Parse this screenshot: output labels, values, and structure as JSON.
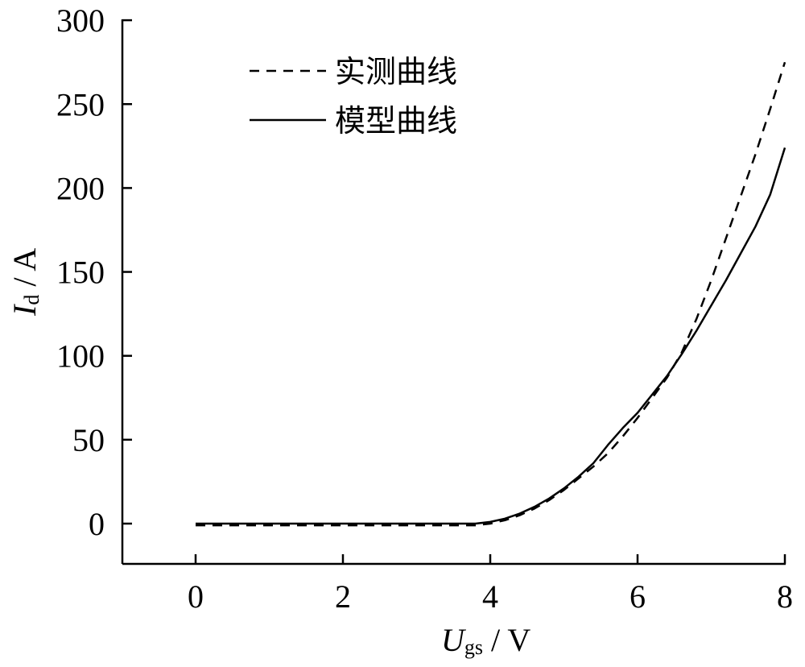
{
  "chart_data": {
    "type": "line",
    "xlabel": {
      "symbol": "U",
      "subscript": "gs",
      "unit": "V"
    },
    "ylabel": {
      "symbol": "I",
      "subscript": "d",
      "unit": "A"
    },
    "xlim": [
      -1,
      8
    ],
    "ylim": [
      -25,
      300
    ],
    "xticks": [
      "0",
      "2",
      "4",
      "6",
      "8"
    ],
    "yticks": [
      "0",
      "50",
      "100",
      "150",
      "200",
      "250",
      "300"
    ],
    "legend_position": "top-left",
    "series": [
      {
        "name": "实测曲线",
        "style": "dashed",
        "x": [
          0,
          1,
          2,
          3,
          3.8,
          4.0,
          4.2,
          4.4,
          4.6,
          4.8,
          5.0,
          5.2,
          5.4,
          5.6,
          5.8,
          6.0,
          6.2,
          6.4,
          6.6,
          6.8,
          7.0,
          7.2,
          7.4,
          7.6,
          7.8,
          8.0
        ],
        "y": [
          -1,
          -1,
          -1,
          -1,
          -1,
          0,
          2,
          5,
          9,
          14,
          20,
          27,
          34,
          42,
          52,
          63,
          75,
          87,
          102,
          122,
          145,
          170,
          195,
          220,
          247,
          275
        ]
      },
      {
        "name": "模型曲线",
        "style": "solid",
        "x": [
          0,
          1,
          2,
          3,
          3.8,
          4.0,
          4.2,
          4.4,
          4.6,
          4.8,
          5.0,
          5.2,
          5.4,
          5.6,
          5.8,
          6.0,
          6.2,
          6.4,
          6.6,
          6.8,
          7.0,
          7.2,
          7.4,
          7.6,
          7.8,
          8.0
        ],
        "y": [
          0,
          0,
          0,
          0,
          0,
          1,
          3,
          6,
          10,
          15,
          21,
          28,
          36,
          47,
          57,
          66,
          77,
          88,
          101,
          115,
          130,
          145,
          161,
          177,
          196,
          224
        ]
      }
    ]
  }
}
